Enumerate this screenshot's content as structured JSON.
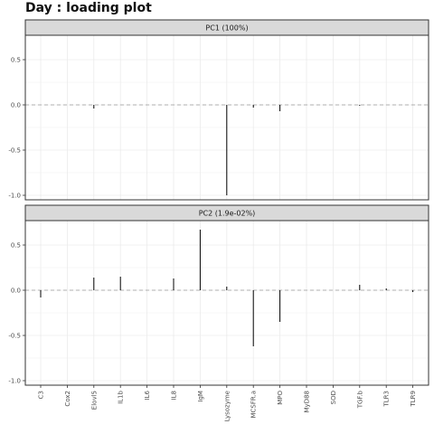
{
  "title": "Day : loading plot",
  "chart_data": {
    "type": "bar",
    "categories": [
      "C3",
      "Cox2",
      "Elovl5",
      "IL1b",
      "IL6",
      "IL8",
      "IgM",
      "Lysozyme",
      "MCSFR.a",
      "MPO",
      "MyD88",
      "SOD",
      "TGF.b",
      "TLR3",
      "TLR9"
    ],
    "y_ticks": [
      -1.0,
      -0.5,
      0.0,
      0.5
    ],
    "y_tick_labels": [
      "-1.0",
      "-0.5",
      "0.0",
      "0.5"
    ],
    "ylim": [
      -1.05,
      0.77
    ],
    "reference_line": 0,
    "grid": true,
    "panels": [
      {
        "name": "PC1 (100%)",
        "values": [
          0.0,
          0.0,
          -0.04,
          0.0,
          0.0,
          0.0,
          0.0,
          -1.0,
          -0.03,
          -0.07,
          0.0,
          0.0,
          -0.01,
          0.0,
          0.0
        ]
      },
      {
        "name": "PC2 (1.9e-02%)",
        "values": [
          -0.08,
          0.0,
          0.14,
          0.15,
          0.0,
          0.13,
          0.67,
          0.04,
          -0.62,
          -0.35,
          0.0,
          0.0,
          0.06,
          0.02,
          -0.02
        ]
      }
    ]
  },
  "colors": {
    "strip_bg": "#d9d9d9",
    "strip_border": "#333333",
    "panel_border": "#333333",
    "grid": "#ebebeb",
    "bar": "#000000",
    "zero_line": "#999999"
  }
}
